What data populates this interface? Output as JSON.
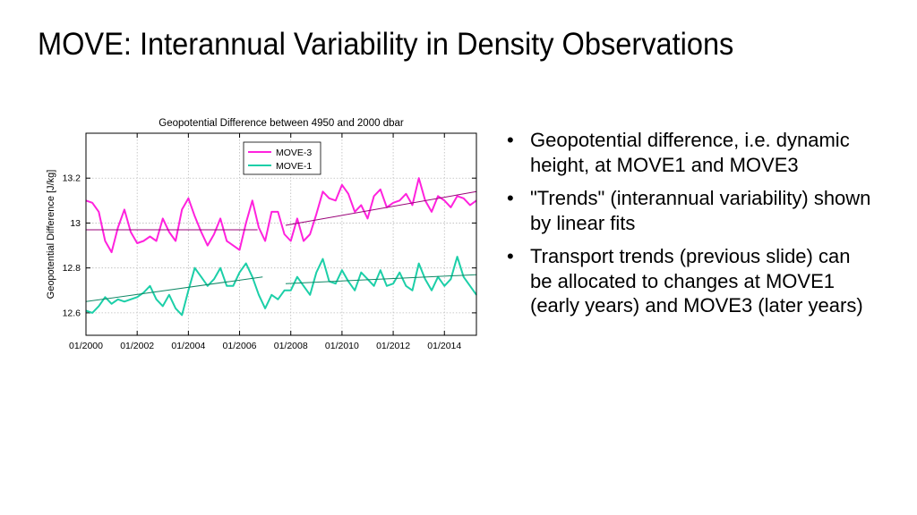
{
  "slide": {
    "title": "MOVE: Interannual Variability in Density Observations",
    "bullet_glyph": "•",
    "bullets": [
      "Geopotential difference, i.e. dynamic height, at MOVE1 and MOVE3",
      "\"Trends\" (interannual variability) shown by linear fits",
      "Transport trends (previous slide) can be allocated to changes at MOVE1 (early years) and MOVE3 (later years)"
    ]
  },
  "colors": {
    "move3": "#ff22dd",
    "move1": "#1ccfa8",
    "fit_move3": "#990077",
    "fit_move1": "#118866",
    "axis": "#000000",
    "grid": "#bbbbbb"
  },
  "chart_data": {
    "type": "line",
    "title": "Geopotential Difference between 4950 and 2000 dbar",
    "ylabel": "Geopotential Difference [J/kg]",
    "xlabel": "",
    "xlim": [
      2000.0,
      2015.25
    ],
    "ylim": [
      12.5,
      13.4
    ],
    "grid": true,
    "legend_position": "top-center",
    "x_ticks": [
      2000,
      2002,
      2004,
      2006,
      2008,
      2010,
      2012,
      2014
    ],
    "x_tick_labels": [
      "01/2000",
      "01/2002",
      "01/2004",
      "01/2006",
      "01/2008",
      "01/2010",
      "01/2012",
      "01/2014"
    ],
    "y_ticks": [
      12.6,
      12.8,
      13.0,
      13.2
    ],
    "y_tick_labels": [
      "12.6",
      "12.8",
      "13",
      "13.2"
    ],
    "series": [
      {
        "name": "MOVE-3",
        "x": [
          2000.0,
          2000.25,
          2000.5,
          2000.75,
          2001.0,
          2001.25,
          2001.5,
          2001.75,
          2002.0,
          2002.25,
          2002.5,
          2002.75,
          2003.0,
          2003.25,
          2003.5,
          2003.75,
          2004.0,
          2004.25,
          2004.5,
          2004.75,
          2005.0,
          2005.25,
          2005.5,
          2005.75,
          2006.0,
          2006.25,
          2006.5,
          2006.75,
          2007.0,
          2007.25,
          2007.5,
          2007.75,
          2008.0,
          2008.25,
          2008.5,
          2008.75,
          2009.0,
          2009.25,
          2009.5,
          2009.75,
          2010.0,
          2010.25,
          2010.5,
          2010.75,
          2011.0,
          2011.25,
          2011.5,
          2011.75,
          2012.0,
          2012.25,
          2012.5,
          2012.75,
          2013.0,
          2013.25,
          2013.5,
          2013.75,
          2014.0,
          2014.25,
          2014.5,
          2014.75,
          2015.0,
          2015.25
        ],
        "values": [
          13.1,
          13.09,
          13.05,
          12.92,
          12.87,
          12.98,
          13.06,
          12.96,
          12.91,
          12.92,
          12.94,
          12.92,
          13.02,
          12.96,
          12.92,
          13.06,
          13.11,
          13.03,
          12.96,
          12.9,
          12.95,
          13.02,
          12.92,
          12.9,
          12.88,
          13.0,
          13.1,
          12.98,
          12.92,
          13.05,
          13.05,
          12.95,
          12.92,
          13.02,
          12.92,
          12.95,
          13.04,
          13.14,
          13.11,
          13.1,
          13.17,
          13.13,
          13.05,
          13.08,
          13.02,
          13.12,
          13.15,
          13.07,
          13.09,
          13.1,
          13.13,
          13.08,
          13.2,
          13.1,
          13.05,
          13.12,
          13.1,
          13.07,
          13.12,
          13.11,
          13.08,
          13.1
        ]
      },
      {
        "name": "MOVE-1",
        "x": [
          2000.0,
          2000.25,
          2000.5,
          2000.75,
          2001.0,
          2001.25,
          2001.5,
          2001.75,
          2002.0,
          2002.25,
          2002.5,
          2002.75,
          2003.0,
          2003.25,
          2003.5,
          2003.75,
          2004.0,
          2004.25,
          2004.5,
          2004.75,
          2005.0,
          2005.25,
          2005.5,
          2005.75,
          2006.0,
          2006.25,
          2006.5,
          2006.75,
          2007.0,
          2007.25,
          2007.5,
          2007.75,
          2008.0,
          2008.25,
          2008.5,
          2008.75,
          2009.0,
          2009.25,
          2009.5,
          2009.75,
          2010.0,
          2010.25,
          2010.5,
          2010.75,
          2011.0,
          2011.25,
          2011.5,
          2011.75,
          2012.0,
          2012.25,
          2012.5,
          2012.75,
          2013.0,
          2013.25,
          2013.5,
          2013.75,
          2014.0,
          2014.25,
          2014.5,
          2014.75,
          2015.0,
          2015.25
        ],
        "values": [
          12.61,
          12.6,
          12.63,
          12.67,
          12.64,
          12.66,
          12.65,
          12.66,
          12.67,
          12.69,
          12.72,
          12.66,
          12.63,
          12.68,
          12.62,
          12.59,
          12.7,
          12.8,
          12.76,
          12.72,
          12.75,
          12.8,
          12.72,
          12.72,
          12.78,
          12.82,
          12.76,
          12.68,
          12.62,
          12.68,
          12.66,
          12.7,
          12.7,
          12.76,
          12.72,
          12.68,
          12.78,
          12.84,
          12.74,
          12.73,
          12.79,
          12.74,
          12.7,
          12.78,
          12.75,
          12.72,
          12.79,
          12.72,
          12.73,
          12.78,
          12.72,
          12.7,
          12.82,
          12.75,
          12.7,
          12.76,
          12.72,
          12.75,
          12.85,
          12.76,
          12.72,
          12.68
        ]
      },
      {
        "name": "",
        "role": "linear-fit-move3-early",
        "x": [
          2000.0,
          2006.7
        ],
        "values": [
          12.97,
          12.97
        ]
      },
      {
        "name": "",
        "role": "linear-fit-move3-late",
        "x": [
          2007.8,
          2015.25
        ],
        "values": [
          12.99,
          13.14
        ]
      },
      {
        "name": "",
        "role": "linear-fit-move1-early",
        "x": [
          2000.0,
          2006.9
        ],
        "values": [
          12.65,
          12.76
        ]
      },
      {
        "name": "",
        "role": "linear-fit-move1-late",
        "x": [
          2007.8,
          2015.25
        ],
        "values": [
          12.73,
          12.77
        ]
      }
    ]
  }
}
